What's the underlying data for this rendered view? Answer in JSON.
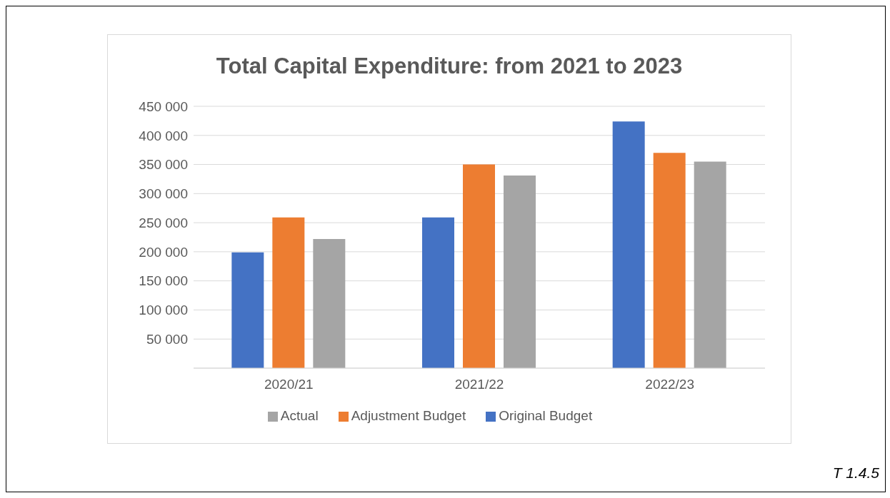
{
  "chart_data": {
    "type": "bar",
    "title": "Total Capital Expenditure: from 2021 to 2023",
    "categories": [
      "2020/21",
      "2021/22",
      "2022/23"
    ],
    "series": [
      {
        "name": "Original Budget",
        "color": "#4472c4",
        "values": [
          199000,
          259000,
          424000
        ]
      },
      {
        "name": "Adjustment Budget",
        "color": "#ed7d31",
        "values": [
          259000,
          350000,
          370000
        ]
      },
      {
        "name": "Actual",
        "color": "#a5a5a5",
        "values": [
          222000,
          331000,
          355000
        ]
      }
    ],
    "ylim": [
      0,
      450000
    ],
    "yticks": [
      {
        "value": 0,
        "label": null
      },
      {
        "value": 50000,
        "label": "50 000"
      },
      {
        "value": 100000,
        "label": "100 000"
      },
      {
        "value": 150000,
        "label": "150 000"
      },
      {
        "value": 200000,
        "label": "200 000"
      },
      {
        "value": 250000,
        "label": "250 000"
      },
      {
        "value": 300000,
        "label": "300 000"
      },
      {
        "value": 350000,
        "label": "350 000"
      },
      {
        "value": 400000,
        "label": "400 000"
      },
      {
        "value": 450000,
        "label": "450 000"
      }
    ],
    "grid": "y",
    "legend": "bottom",
    "annotations": [
      "T 1.4.5"
    ]
  }
}
